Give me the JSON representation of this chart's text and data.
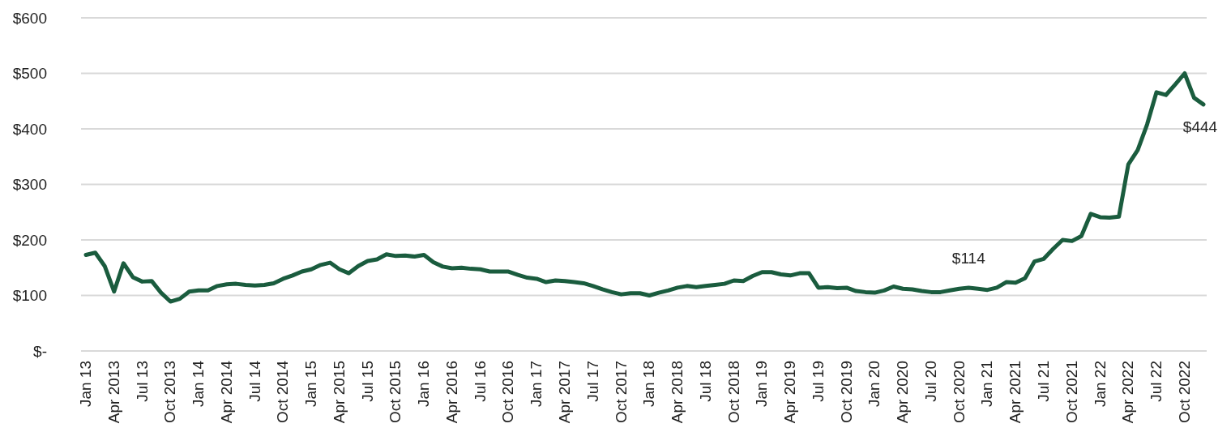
{
  "chart_data": {
    "type": "line",
    "categories": [
      "Jan 13",
      null,
      null,
      "Apr 2013",
      null,
      null,
      "Jul 13",
      null,
      null,
      "Oct 2013",
      null,
      null,
      "Jan 14",
      null,
      null,
      "Apr 2014",
      null,
      null,
      "Jul 14",
      null,
      null,
      "Oct 2014",
      null,
      null,
      "Jan 15",
      null,
      null,
      "Apr 2015",
      null,
      null,
      "Jul 15",
      null,
      null,
      "Oct 2015",
      null,
      null,
      "Jan 16",
      null,
      null,
      "Apr 2016",
      null,
      null,
      "Jul 16",
      null,
      null,
      "Oct 2016",
      null,
      null,
      "Jan 17",
      null,
      null,
      "Apr 2017",
      null,
      null,
      "Jul 17",
      null,
      null,
      "Oct 2017",
      null,
      null,
      "Jan 18",
      null,
      null,
      "Apr 2018",
      null,
      null,
      "Jul 18",
      null,
      null,
      "Oct 2018",
      null,
      null,
      "Jan 19",
      null,
      null,
      "Apr 2019",
      null,
      null,
      "Jul 19",
      null,
      null,
      "Oct 2019",
      null,
      null,
      "Jan 20",
      null,
      null,
      "Apr 2020",
      null,
      null,
      "Jul 20",
      null,
      null,
      "Oct 2020",
      null,
      null,
      "Jan 21",
      null,
      null,
      "Apr 2021",
      null,
      null,
      "Jul 21",
      null,
      null,
      "Oct 2021",
      null,
      null,
      "Jan 22",
      null,
      null,
      "Apr 2022",
      null,
      null,
      "Jul 22",
      null,
      null,
      "Oct 2022",
      null,
      null
    ],
    "series": [
      {
        "color": "#1a5c3e",
        "values": [
          173,
          177,
          153,
          107,
          158,
          133,
          125,
          126,
          105,
          89,
          94,
          107,
          109,
          109,
          117,
          120,
          121,
          119,
          118,
          119,
          122,
          130,
          136,
          143,
          147,
          155,
          159,
          147,
          140,
          153,
          162,
          165,
          174,
          171,
          172,
          170,
          173,
          160,
          152,
          149,
          150,
          148,
          147,
          143,
          143,
          143,
          137,
          132,
          130,
          124,
          127,
          126,
          124,
          122,
          117,
          111,
          106,
          102,
          104,
          104,
          100,
          105,
          109,
          114,
          117,
          115,
          117,
          119,
          121,
          127,
          126,
          135,
          142,
          142,
          138,
          136,
          140,
          140,
          114,
          115,
          113,
          114,
          108,
          106,
          105,
          109,
          116,
          112,
          111,
          108,
          106,
          106,
          109,
          112,
          114,
          112,
          110,
          114,
          124,
          123,
          131,
          161,
          166,
          184,
          200,
          198,
          207,
          247,
          241,
          240,
          242,
          336,
          362,
          408,
          466,
          461,
          480,
          500,
          456,
          444
        ],
        "value_labels": [
          null,
          null,
          null,
          null,
          null,
          null,
          null,
          null,
          null,
          null,
          null,
          null,
          null,
          null,
          null,
          null,
          null,
          null,
          null,
          null,
          null,
          null,
          null,
          null,
          null,
          null,
          null,
          null,
          null,
          null,
          null,
          null,
          null,
          null,
          null,
          null,
          null,
          null,
          null,
          null,
          null,
          null,
          null,
          null,
          null,
          null,
          null,
          null,
          null,
          null,
          null,
          null,
          null,
          null,
          null,
          null,
          null,
          null,
          null,
          null,
          null,
          null,
          null,
          null,
          null,
          null,
          null,
          null,
          null,
          null,
          null,
          null,
          null,
          null,
          null,
          null,
          null,
          null,
          null,
          null,
          null,
          null,
          null,
          null,
          null,
          null,
          null,
          null,
          null,
          null,
          null,
          null,
          null,
          null,
          "$114",
          null,
          null,
          null,
          null,
          null,
          null,
          null,
          null,
          null,
          null,
          null,
          null,
          null,
          null,
          null,
          null,
          null,
          null,
          null,
          null,
          null,
          null,
          null,
          null,
          "$444"
        ]
      }
    ],
    "ylim": [
      0,
      600
    ],
    "yticks": [
      {
        "value": 0,
        "label": "$-"
      },
      {
        "value": 100,
        "label": "$100"
      },
      {
        "value": 200,
        "label": "$200"
      },
      {
        "value": 300,
        "label": "$300"
      },
      {
        "value": 400,
        "label": "$400"
      },
      {
        "value": 500,
        "label": "$500"
      },
      {
        "value": 600,
        "label": "$600"
      }
    ],
    "grid": "y",
    "marker": "none",
    "line_style": "solid"
  }
}
